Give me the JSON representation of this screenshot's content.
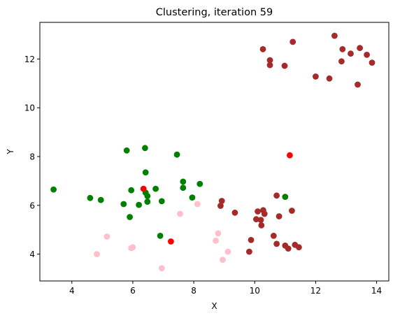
{
  "chart_data": {
    "type": "scatter",
    "title": "Clustering, iteration 59",
    "xlabel": "X",
    "ylabel": "Y",
    "xlim": [
      2.95,
      14.4
    ],
    "ylim": [
      2.9,
      13.5
    ],
    "xticks": [
      4,
      6,
      8,
      10,
      12,
      14
    ],
    "yticks": [
      4,
      6,
      8,
      10,
      12
    ],
    "grid": false,
    "legend": "none",
    "colors": {
      "green": "#008000",
      "pink": "#ffc0cb",
      "brown": "#a52a2a",
      "red": "#ff0000"
    },
    "points": [
      {
        "x": 3.4,
        "y": 6.65,
        "c": "green"
      },
      {
        "x": 4.6,
        "y": 6.3,
        "c": "green"
      },
      {
        "x": 4.95,
        "y": 6.22,
        "c": "green"
      },
      {
        "x": 5.7,
        "y": 6.05,
        "c": "green"
      },
      {
        "x": 5.8,
        "y": 8.25,
        "c": "green"
      },
      {
        "x": 5.9,
        "y": 5.52,
        "c": "green"
      },
      {
        "x": 5.95,
        "y": 6.62,
        "c": "green"
      },
      {
        "x": 6.2,
        "y": 6.02,
        "c": "green"
      },
      {
        "x": 6.4,
        "y": 8.35,
        "c": "green"
      },
      {
        "x": 6.42,
        "y": 7.35,
        "c": "green"
      },
      {
        "x": 6.42,
        "y": 6.52,
        "c": "green"
      },
      {
        "x": 6.48,
        "y": 6.38,
        "c": "green"
      },
      {
        "x": 6.48,
        "y": 6.15,
        "c": "green"
      },
      {
        "x": 6.75,
        "y": 6.68,
        "c": "green"
      },
      {
        "x": 6.9,
        "y": 4.75,
        "c": "green"
      },
      {
        "x": 6.95,
        "y": 6.17,
        "c": "green"
      },
      {
        "x": 7.45,
        "y": 8.08,
        "c": "green"
      },
      {
        "x": 7.65,
        "y": 6.97,
        "c": "green"
      },
      {
        "x": 7.65,
        "y": 6.72,
        "c": "green"
      },
      {
        "x": 7.95,
        "y": 6.32,
        "c": "green"
      },
      {
        "x": 8.2,
        "y": 6.88,
        "c": "green"
      },
      {
        "x": 11.0,
        "y": 6.35,
        "c": "green"
      },
      {
        "x": 4.82,
        "y": 4.0,
        "c": "pink"
      },
      {
        "x": 5.15,
        "y": 4.72,
        "c": "pink"
      },
      {
        "x": 5.95,
        "y": 4.25,
        "c": "pink"
      },
      {
        "x": 6.0,
        "y": 4.28,
        "c": "pink"
      },
      {
        "x": 6.95,
        "y": 3.42,
        "c": "pink"
      },
      {
        "x": 7.55,
        "y": 5.65,
        "c": "pink"
      },
      {
        "x": 8.12,
        "y": 6.05,
        "c": "pink"
      },
      {
        "x": 8.72,
        "y": 4.55,
        "c": "pink"
      },
      {
        "x": 8.8,
        "y": 4.85,
        "c": "pink"
      },
      {
        "x": 8.95,
        "y": 3.77,
        "c": "pink"
      },
      {
        "x": 9.12,
        "y": 4.1,
        "c": "pink"
      },
      {
        "x": 8.88,
        "y": 5.98,
        "c": "brown"
      },
      {
        "x": 8.92,
        "y": 6.18,
        "c": "brown"
      },
      {
        "x": 9.35,
        "y": 5.7,
        "c": "brown"
      },
      {
        "x": 9.82,
        "y": 4.1,
        "c": "brown"
      },
      {
        "x": 9.88,
        "y": 4.58,
        "c": "brown"
      },
      {
        "x": 10.05,
        "y": 5.43,
        "c": "brown"
      },
      {
        "x": 10.1,
        "y": 5.75,
        "c": "brown"
      },
      {
        "x": 10.2,
        "y": 5.4,
        "c": "brown"
      },
      {
        "x": 10.22,
        "y": 5.18,
        "c": "brown"
      },
      {
        "x": 10.28,
        "y": 5.8,
        "c": "brown"
      },
      {
        "x": 10.32,
        "y": 5.65,
        "c": "brown"
      },
      {
        "x": 10.62,
        "y": 4.75,
        "c": "brown"
      },
      {
        "x": 10.72,
        "y": 6.4,
        "c": "brown"
      },
      {
        "x": 10.72,
        "y": 4.42,
        "c": "brown"
      },
      {
        "x": 10.8,
        "y": 5.55,
        "c": "brown"
      },
      {
        "x": 11.0,
        "y": 4.35,
        "c": "brown"
      },
      {
        "x": 11.1,
        "y": 4.23,
        "c": "brown"
      },
      {
        "x": 11.22,
        "y": 5.78,
        "c": "brown"
      },
      {
        "x": 11.32,
        "y": 4.38,
        "c": "brown"
      },
      {
        "x": 11.45,
        "y": 4.28,
        "c": "brown"
      },
      {
        "x": 10.27,
        "y": 12.4,
        "c": "brown"
      },
      {
        "x": 10.5,
        "y": 11.95,
        "c": "brown"
      },
      {
        "x": 10.5,
        "y": 11.75,
        "c": "brown"
      },
      {
        "x": 10.98,
        "y": 11.72,
        "c": "brown"
      },
      {
        "x": 11.25,
        "y": 12.7,
        "c": "brown"
      },
      {
        "x": 12.0,
        "y": 11.28,
        "c": "brown"
      },
      {
        "x": 12.45,
        "y": 11.2,
        "c": "brown"
      },
      {
        "x": 12.62,
        "y": 12.95,
        "c": "brown"
      },
      {
        "x": 12.85,
        "y": 11.9,
        "c": "brown"
      },
      {
        "x": 12.88,
        "y": 12.4,
        "c": "brown"
      },
      {
        "x": 13.15,
        "y": 12.22,
        "c": "brown"
      },
      {
        "x": 13.38,
        "y": 10.95,
        "c": "brown"
      },
      {
        "x": 13.45,
        "y": 12.45,
        "c": "brown"
      },
      {
        "x": 13.68,
        "y": 12.17,
        "c": "brown"
      },
      {
        "x": 13.85,
        "y": 11.85,
        "c": "brown"
      },
      {
        "x": 6.35,
        "y": 6.68,
        "c": "red"
      },
      {
        "x": 7.25,
        "y": 4.52,
        "c": "red"
      },
      {
        "x": 11.15,
        "y": 8.05,
        "c": "red"
      }
    ]
  }
}
